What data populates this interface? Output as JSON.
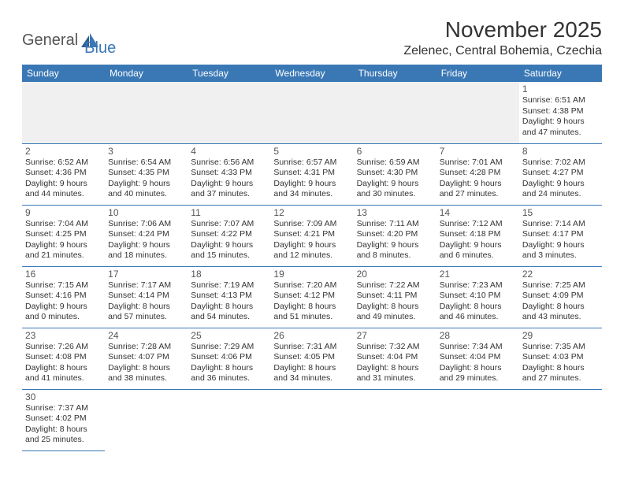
{
  "logo": {
    "part1": "General",
    "part2": "Blue"
  },
  "title": "November 2025",
  "location": "Zelenec, Central Bohemia, Czechia",
  "header_bg": "#3a78b5",
  "days_of_week": [
    "Sunday",
    "Monday",
    "Tuesday",
    "Wednesday",
    "Thursday",
    "Friday",
    "Saturday"
  ],
  "weeks": [
    [
      null,
      null,
      null,
      null,
      null,
      null,
      {
        "n": "1",
        "sunrise": "6:51 AM",
        "sunset": "4:38 PM",
        "dl_h": "9",
        "dl_m": "47"
      }
    ],
    [
      {
        "n": "2",
        "sunrise": "6:52 AM",
        "sunset": "4:36 PM",
        "dl_h": "9",
        "dl_m": "44"
      },
      {
        "n": "3",
        "sunrise": "6:54 AM",
        "sunset": "4:35 PM",
        "dl_h": "9",
        "dl_m": "40"
      },
      {
        "n": "4",
        "sunrise": "6:56 AM",
        "sunset": "4:33 PM",
        "dl_h": "9",
        "dl_m": "37"
      },
      {
        "n": "5",
        "sunrise": "6:57 AM",
        "sunset": "4:31 PM",
        "dl_h": "9",
        "dl_m": "34"
      },
      {
        "n": "6",
        "sunrise": "6:59 AM",
        "sunset": "4:30 PM",
        "dl_h": "9",
        "dl_m": "30"
      },
      {
        "n": "7",
        "sunrise": "7:01 AM",
        "sunset": "4:28 PM",
        "dl_h": "9",
        "dl_m": "27"
      },
      {
        "n": "8",
        "sunrise": "7:02 AM",
        "sunset": "4:27 PM",
        "dl_h": "9",
        "dl_m": "24"
      }
    ],
    [
      {
        "n": "9",
        "sunrise": "7:04 AM",
        "sunset": "4:25 PM",
        "dl_h": "9",
        "dl_m": "21"
      },
      {
        "n": "10",
        "sunrise": "7:06 AM",
        "sunset": "4:24 PM",
        "dl_h": "9",
        "dl_m": "18"
      },
      {
        "n": "11",
        "sunrise": "7:07 AM",
        "sunset": "4:22 PM",
        "dl_h": "9",
        "dl_m": "15"
      },
      {
        "n": "12",
        "sunrise": "7:09 AM",
        "sunset": "4:21 PM",
        "dl_h": "9",
        "dl_m": "12"
      },
      {
        "n": "13",
        "sunrise": "7:11 AM",
        "sunset": "4:20 PM",
        "dl_h": "9",
        "dl_m": "8"
      },
      {
        "n": "14",
        "sunrise": "7:12 AM",
        "sunset": "4:18 PM",
        "dl_h": "9",
        "dl_m": "6"
      },
      {
        "n": "15",
        "sunrise": "7:14 AM",
        "sunset": "4:17 PM",
        "dl_h": "9",
        "dl_m": "3"
      }
    ],
    [
      {
        "n": "16",
        "sunrise": "7:15 AM",
        "sunset": "4:16 PM",
        "dl_h": "9",
        "dl_m": "0"
      },
      {
        "n": "17",
        "sunrise": "7:17 AM",
        "sunset": "4:14 PM",
        "dl_h": "8",
        "dl_m": "57"
      },
      {
        "n": "18",
        "sunrise": "7:19 AM",
        "sunset": "4:13 PM",
        "dl_h": "8",
        "dl_m": "54"
      },
      {
        "n": "19",
        "sunrise": "7:20 AM",
        "sunset": "4:12 PM",
        "dl_h": "8",
        "dl_m": "51"
      },
      {
        "n": "20",
        "sunrise": "7:22 AM",
        "sunset": "4:11 PM",
        "dl_h": "8",
        "dl_m": "49"
      },
      {
        "n": "21",
        "sunrise": "7:23 AM",
        "sunset": "4:10 PM",
        "dl_h": "8",
        "dl_m": "46"
      },
      {
        "n": "22",
        "sunrise": "7:25 AM",
        "sunset": "4:09 PM",
        "dl_h": "8",
        "dl_m": "43"
      }
    ],
    [
      {
        "n": "23",
        "sunrise": "7:26 AM",
        "sunset": "4:08 PM",
        "dl_h": "8",
        "dl_m": "41"
      },
      {
        "n": "24",
        "sunrise": "7:28 AM",
        "sunset": "4:07 PM",
        "dl_h": "8",
        "dl_m": "38"
      },
      {
        "n": "25",
        "sunrise": "7:29 AM",
        "sunset": "4:06 PM",
        "dl_h": "8",
        "dl_m": "36"
      },
      {
        "n": "26",
        "sunrise": "7:31 AM",
        "sunset": "4:05 PM",
        "dl_h": "8",
        "dl_m": "34"
      },
      {
        "n": "27",
        "sunrise": "7:32 AM",
        "sunset": "4:04 PM",
        "dl_h": "8",
        "dl_m": "31"
      },
      {
        "n": "28",
        "sunrise": "7:34 AM",
        "sunset": "4:04 PM",
        "dl_h": "8",
        "dl_m": "29"
      },
      {
        "n": "29",
        "sunrise": "7:35 AM",
        "sunset": "4:03 PM",
        "dl_h": "8",
        "dl_m": "27"
      }
    ],
    [
      {
        "n": "30",
        "sunrise": "7:37 AM",
        "sunset": "4:02 PM",
        "dl_h": "8",
        "dl_m": "25"
      },
      null,
      null,
      null,
      null,
      null,
      null
    ]
  ],
  "labels": {
    "sunrise": "Sunrise:",
    "sunset": "Sunset:",
    "daylight": "Daylight:",
    "hours": "hours",
    "and": "and",
    "minutes": "minutes."
  }
}
